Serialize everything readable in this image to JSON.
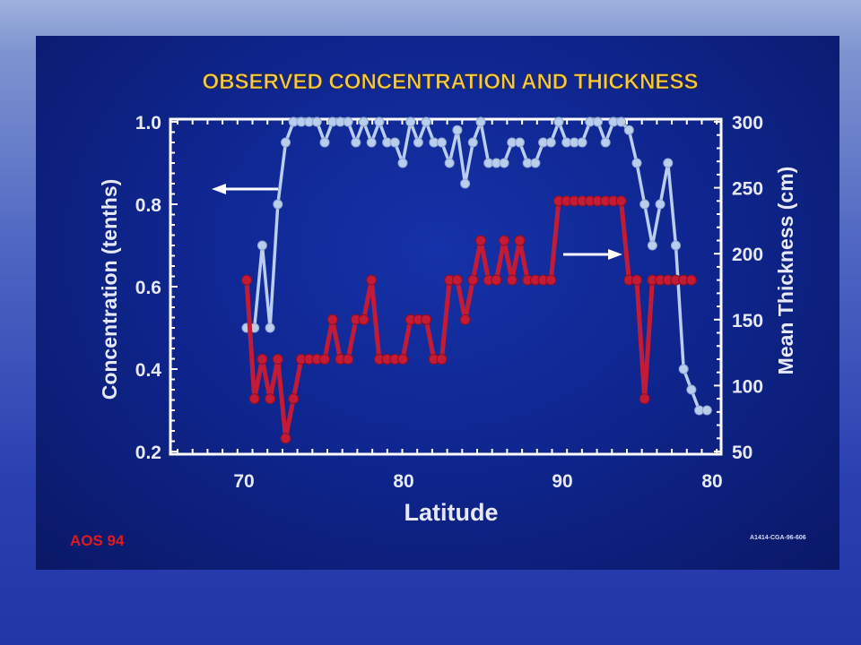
{
  "chart_data": {
    "type": "line",
    "title": "OBSERVED CONCENTRATION AND THICKNESS",
    "xlabel": "Latitude",
    "ylabel_left": "Concentration (tenths)",
    "ylabel_right": "Mean Thickness (cm)",
    "x_tick_labels": [
      "70",
      "80",
      "90",
      "80"
    ],
    "y_left_ticks": [
      1.0,
      0.8,
      0.6,
      0.4,
      0.2
    ],
    "y_left_tick_labels": [
      "1.0",
      "0.8",
      "0.6",
      "0.4",
      "0.2"
    ],
    "y_right_ticks": [
      300,
      250,
      200,
      150,
      100,
      50
    ],
    "ylim_left": [
      0.2,
      1.0
    ],
    "ylim_right": [
      50,
      300
    ],
    "grid": false,
    "series": [
      {
        "axis": "left",
        "color": "#b9cdec",
        "x": [
          70.0,
          70.5,
          71.0,
          71.5,
          72.0,
          72.5,
          73.0,
          73.5,
          74.0,
          74.5,
          75.0,
          75.5,
          76.0,
          76.5,
          77.0,
          77.5,
          78.0,
          78.5,
          79.0,
          79.5,
          80.0,
          80.5,
          81.0,
          81.5,
          82.0,
          82.5,
          83.0,
          83.5,
          84.0,
          84.5,
          85.0,
          85.5,
          86.0,
          86.5,
          87.0,
          87.5,
          88.0,
          88.5,
          89.0,
          89.5,
          90.0,
          90.5,
          91.0,
          91.5,
          92.0,
          92.5,
          93.0,
          93.5,
          94.0,
          94.5,
          95.0,
          95.5,
          96.0,
          96.5,
          97.0,
          97.5,
          98.0,
          98.5,
          99.0,
          99.5
        ],
        "values": [
          0.5,
          0.5,
          0.7,
          0.5,
          0.8,
          0.95,
          1.0,
          1.0,
          1.0,
          1.0,
          0.95,
          1.0,
          1.0,
          1.0,
          0.95,
          1.0,
          0.95,
          1.0,
          0.95,
          0.95,
          0.9,
          1.0,
          0.95,
          1.0,
          0.95,
          0.95,
          0.9,
          0.98,
          0.85,
          0.95,
          1.0,
          0.9,
          0.9,
          0.9,
          0.95,
          0.95,
          0.9,
          0.9,
          0.95,
          0.95,
          1.0,
          0.95,
          0.95,
          0.95,
          1.0,
          1.0,
          0.95,
          1.0,
          1.0,
          0.98,
          0.9,
          0.8,
          0.7,
          0.8,
          0.9,
          0.7,
          0.4,
          0.35,
          0.3,
          0.3
        ]
      },
      {
        "axis": "right",
        "color": "#c31a36",
        "x": [
          70.0,
          70.5,
          71.0,
          71.5,
          72.0,
          72.5,
          73.0,
          73.5,
          74.0,
          74.5,
          75.0,
          75.5,
          76.0,
          76.5,
          77.0,
          77.5,
          78.0,
          78.5,
          79.0,
          79.5,
          80.0,
          80.5,
          81.0,
          81.5,
          82.0,
          82.5,
          83.0,
          83.5,
          84.0,
          84.5,
          85.0,
          85.5,
          86.0,
          86.5,
          87.0,
          87.5,
          88.0,
          88.5,
          89.0,
          89.5,
          90.0,
          90.5,
          91.0,
          91.5,
          92.0,
          92.5,
          93.0,
          93.5,
          94.0,
          94.5,
          95.0,
          95.5,
          96.0,
          96.5,
          97.0,
          97.5,
          98.0,
          98.5
        ],
        "values": [
          180,
          90,
          120,
          90,
          120,
          60,
          90,
          120,
          120,
          120,
          120,
          150,
          120,
          120,
          150,
          150,
          180,
          120,
          120,
          120,
          120,
          150,
          150,
          150,
          120,
          120,
          180,
          180,
          150,
          180,
          210,
          180,
          180,
          210,
          180,
          210,
          180,
          180,
          180,
          180,
          240,
          240,
          240,
          240,
          240,
          240,
          240,
          240,
          240,
          180,
          180,
          90,
          180,
          180,
          180,
          180,
          180,
          180
        ]
      }
    ],
    "arrows": [
      {
        "points_to": "left"
      },
      {
        "points_to": "right"
      }
    ]
  },
  "footer": {
    "source_label": "AOS 94",
    "figure_code": "A1414-CGA-96-606"
  }
}
